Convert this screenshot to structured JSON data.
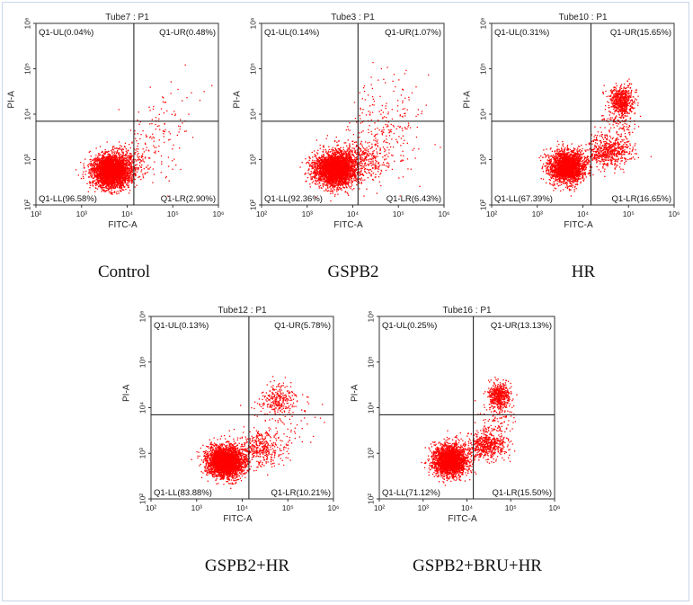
{
  "chart_data": [
    {
      "type": "scatter",
      "title": "Tube7 : P1",
      "caption": "Control",
      "xlabel": "FITC-A",
      "ylabel": "PI-A",
      "x_scale": "log",
      "y_scale": "log",
      "xlim": [
        100,
        1000000
      ],
      "ylim": [
        100,
        1000000
      ],
      "x_ticks": [
        100,
        1000,
        10000,
        100000,
        1000000
      ],
      "y_ticks": [
        100,
        1000,
        10000,
        100000,
        1000000
      ],
      "x_tick_labels": [
        "10²",
        "10³",
        "10⁴",
        "10⁵",
        "10⁶"
      ],
      "y_tick_labels": [
        "10²",
        "10³",
        "10⁴",
        "10⁵",
        "10⁶"
      ],
      "gate": {
        "x": 14000,
        "y": 7000
      },
      "quadrants": [
        {
          "name": "Q1-UL",
          "label": "Q1-UL(0.04%)",
          "percent": 0.04
        },
        {
          "name": "Q1-UR",
          "label": "Q1-UR(0.48%)",
          "percent": 0.48
        },
        {
          "name": "Q1-LL",
          "label": "Q1-LL(96.58%)",
          "percent": 96.58
        },
        {
          "name": "Q1-LR",
          "label": "Q1-LR(2.90%)",
          "percent": 2.9
        }
      ],
      "clusters": [
        {
          "x": 4500,
          "y": 550,
          "sx": 0.2,
          "sy": 0.17,
          "n": 3200
        },
        {
          "x": 9000,
          "y": 800,
          "sx": 0.25,
          "sy": 0.2,
          "n": 300
        },
        {
          "x": 40000,
          "y": 2000,
          "sx": 0.35,
          "sy": 0.4,
          "n": 120
        },
        {
          "x": 100000,
          "y": 20000,
          "sx": 0.35,
          "sy": 0.4,
          "n": 30
        }
      ],
      "dot_color": "#ff0000",
      "grid": false
    },
    {
      "type": "scatter",
      "title": "Tube3 : P1",
      "caption": "GSPB2",
      "xlabel": "FITC-A",
      "ylabel": "PI-A",
      "x_scale": "log",
      "y_scale": "log",
      "xlim": [
        100,
        1000000
      ],
      "ylim": [
        100,
        1000000
      ],
      "x_ticks": [
        100,
        1000,
        10000,
        100000,
        1000000
      ],
      "y_ticks": [
        100,
        1000,
        10000,
        100000,
        1000000
      ],
      "x_tick_labels": [
        "10²",
        "10³",
        "10⁴",
        "10⁵",
        "10⁶"
      ],
      "y_tick_labels": [
        "10²",
        "10³",
        "10⁴",
        "10⁵",
        "10⁶"
      ],
      "gate": {
        "x": 13000,
        "y": 7000
      },
      "quadrants": [
        {
          "name": "Q1-UL",
          "label": "Q1-UL(0.14%)",
          "percent": 0.14
        },
        {
          "name": "Q1-UR",
          "label": "Q1-UR(1.07%)",
          "percent": 1.07
        },
        {
          "name": "Q1-LL",
          "label": "Q1-LL(92.36%)",
          "percent": 92.36
        },
        {
          "name": "Q1-LR",
          "label": "Q1-LR(6.43%)",
          "percent": 6.43
        }
      ],
      "clusters": [
        {
          "x": 4000,
          "y": 600,
          "sx": 0.22,
          "sy": 0.19,
          "n": 3000
        },
        {
          "x": 11000,
          "y": 900,
          "sx": 0.3,
          "sy": 0.22,
          "n": 400
        },
        {
          "x": 40000,
          "y": 2500,
          "sx": 0.4,
          "sy": 0.45,
          "n": 250
        },
        {
          "x": 80000,
          "y": 25000,
          "sx": 0.4,
          "sy": 0.4,
          "n": 60
        }
      ],
      "dot_color": "#ff0000",
      "grid": false
    },
    {
      "type": "scatter",
      "title": "Tube10 : P1",
      "caption": "HR",
      "xlabel": "FITC-A",
      "ylabel": "PI-A",
      "x_scale": "log",
      "y_scale": "log",
      "xlim": [
        100,
        1000000
      ],
      "ylim": [
        100,
        1000000
      ],
      "x_ticks": [
        100,
        1000,
        10000,
        100000,
        1000000
      ],
      "y_ticks": [
        100,
        1000,
        10000,
        100000,
        1000000
      ],
      "x_tick_labels": [
        "10²",
        "10³",
        "10⁴",
        "10⁵",
        "10⁶"
      ],
      "y_tick_labels": [
        "10²",
        "10³",
        "10⁴",
        "10⁵",
        "10⁶"
      ],
      "gate": {
        "x": 15000,
        "y": 7000
      },
      "quadrants": [
        {
          "name": "Q1-UL",
          "label": "Q1-UL(0.31%)",
          "percent": 0.31
        },
        {
          "name": "Q1-UR",
          "label": "Q1-UR(15.65%)",
          "percent": 15.65
        },
        {
          "name": "Q1-LL",
          "label": "Q1-LL(67.39%)",
          "percent": 67.39
        },
        {
          "name": "Q1-LR",
          "label": "Q1-LR(16.65%)",
          "percent": 16.65
        }
      ],
      "clusters": [
        {
          "x": 4500,
          "y": 700,
          "sx": 0.2,
          "sy": 0.17,
          "n": 2300
        },
        {
          "x": 35000,
          "y": 1500,
          "sx": 0.25,
          "sy": 0.17,
          "n": 600
        },
        {
          "x": 70000,
          "y": 20000,
          "sx": 0.14,
          "sy": 0.16,
          "n": 600
        },
        {
          "x": 60000,
          "y": 6000,
          "sx": 0.2,
          "sy": 0.25,
          "n": 120
        }
      ],
      "dot_color": "#ff0000",
      "grid": false
    },
    {
      "type": "scatter",
      "title": "Tube12 : P1",
      "caption": "GSPB2+HR",
      "xlabel": "FITC-A",
      "ylabel": "PI-A",
      "x_scale": "log",
      "y_scale": "log",
      "xlim": [
        100,
        1000000
      ],
      "ylim": [
        100,
        1000000
      ],
      "x_ticks": [
        100,
        1000,
        10000,
        100000,
        1000000
      ],
      "y_ticks": [
        100,
        1000,
        10000,
        100000,
        1000000
      ],
      "x_tick_labels": [
        "10²",
        "10³",
        "10⁴",
        "10⁵",
        "10⁶"
      ],
      "y_tick_labels": [
        "10²",
        "10³",
        "10⁴",
        "10⁵",
        "10⁶"
      ],
      "gate": {
        "x": 14000,
        "y": 7000
      },
      "quadrants": [
        {
          "name": "Q1-UL",
          "label": "Q1-UL(0.13%)",
          "percent": 0.13
        },
        {
          "name": "Q1-UR",
          "label": "Q1-UR(5.78%)",
          "percent": 5.78
        },
        {
          "name": "Q1-LL",
          "label": "Q1-LL(83.88%)",
          "percent": 83.88
        },
        {
          "name": "Q1-LR",
          "label": "Q1-LR(10.21%)",
          "percent": 10.21
        }
      ],
      "clusters": [
        {
          "x": 4200,
          "y": 650,
          "sx": 0.2,
          "sy": 0.17,
          "n": 2900
        },
        {
          "x": 25000,
          "y": 1300,
          "sx": 0.28,
          "sy": 0.2,
          "n": 400
        },
        {
          "x": 60000,
          "y": 15000,
          "sx": 0.18,
          "sy": 0.18,
          "n": 250
        },
        {
          "x": 80000,
          "y": 5000,
          "sx": 0.35,
          "sy": 0.35,
          "n": 80
        }
      ],
      "dot_color": "#ff0000",
      "grid": false
    },
    {
      "type": "scatter",
      "title": "Tube16 : P1",
      "caption": "GSPB2+BRU+HR",
      "xlabel": "FITC-A",
      "ylabel": "PI-A",
      "x_scale": "log",
      "y_scale": "log",
      "xlim": [
        100,
        1000000
      ],
      "ylim": [
        100,
        1000000
      ],
      "x_ticks": [
        100,
        1000,
        10000,
        100000,
        1000000
      ],
      "y_ticks": [
        100,
        1000,
        10000,
        100000,
        1000000
      ],
      "x_tick_labels": [
        "10²",
        "10³",
        "10⁴",
        "10⁵",
        "10⁶"
      ],
      "y_tick_labels": [
        "10²",
        "10³",
        "10⁴",
        "10⁵",
        "10⁶"
      ],
      "gate": {
        "x": 14000,
        "y": 7000
      },
      "quadrants": [
        {
          "name": "Q1-UL",
          "label": "Q1-UL(0.25%)",
          "percent": 0.25
        },
        {
          "name": "Q1-UR",
          "label": "Q1-UR(13.13%)",
          "percent": 13.13
        },
        {
          "name": "Q1-LL",
          "label": "Q1-LL(71.12%)",
          "percent": 71.12
        },
        {
          "name": "Q1-LR",
          "label": "Q1-LR(15.50%)",
          "percent": 15.5
        }
      ],
      "clusters": [
        {
          "x": 4200,
          "y": 700,
          "sx": 0.19,
          "sy": 0.17,
          "n": 2400
        },
        {
          "x": 30000,
          "y": 1500,
          "sx": 0.22,
          "sy": 0.16,
          "n": 550
        },
        {
          "x": 55000,
          "y": 18000,
          "sx": 0.12,
          "sy": 0.15,
          "n": 500
        },
        {
          "x": 45000,
          "y": 5000,
          "sx": 0.2,
          "sy": 0.25,
          "n": 100
        }
      ],
      "dot_color": "#ff0000",
      "grid": false
    }
  ]
}
